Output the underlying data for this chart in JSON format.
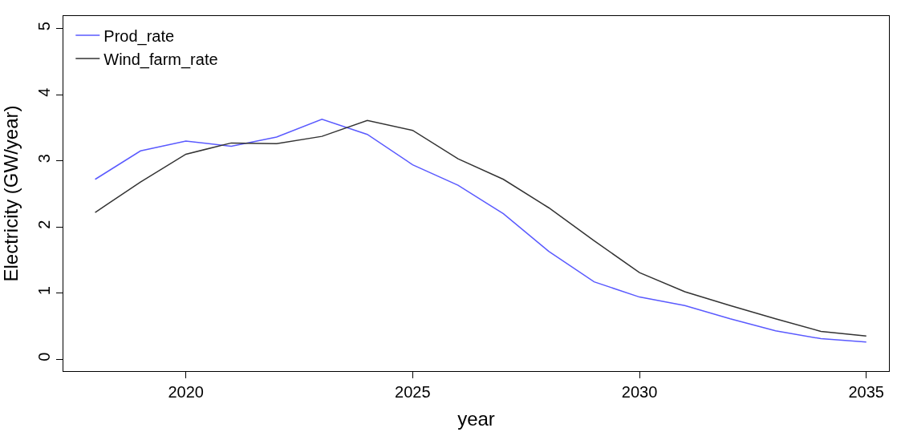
{
  "chart_data": {
    "type": "line",
    "xlabel": "year",
    "ylabel": "Electricity (GW/year)",
    "x": [
      2018,
      2019,
      2020,
      2021,
      2022,
      2023,
      2024,
      2025,
      2026,
      2027,
      2028,
      2029,
      2030,
      2031,
      2032,
      2033,
      2034,
      2035
    ],
    "series": [
      {
        "name": "Prod_rate",
        "color": "#5a5aff",
        "values": [
          2.72,
          3.15,
          3.3,
          3.22,
          3.36,
          3.63,
          3.4,
          2.94,
          2.63,
          2.2,
          1.63,
          1.17,
          0.94,
          0.81,
          0.61,
          0.43,
          0.31,
          0.26
        ]
      },
      {
        "name": "Wind_farm_rate",
        "color": "#333333",
        "values": [
          2.22,
          2.68,
          3.1,
          3.27,
          3.26,
          3.37,
          3.61,
          3.46,
          3.03,
          2.72,
          2.29,
          1.79,
          1.31,
          1.02,
          0.81,
          0.61,
          0.42,
          0.35
        ]
      }
    ],
    "xlim": [
      2017.3,
      2035.5
    ],
    "xticks": [
      2020,
      2025,
      2030,
      2035
    ],
    "ylim": [
      -0.18,
      5.19
    ],
    "yticks": [
      0,
      1,
      2,
      3,
      4,
      5
    ],
    "legend": "top left",
    "marker": "none",
    "line_style": "solid"
  }
}
